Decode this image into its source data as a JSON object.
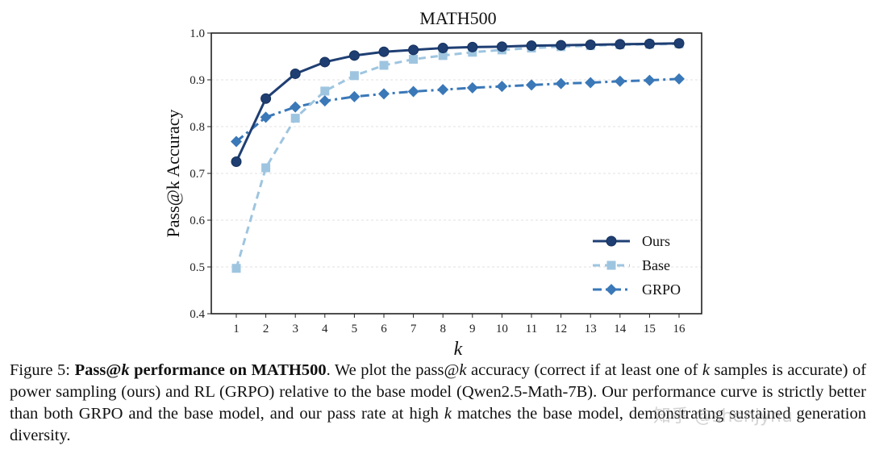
{
  "chart_data": {
    "type": "line",
    "title": "MATH500",
    "xlabel": "k",
    "ylabel": "Pass@k Accuracy",
    "x": [
      1,
      2,
      3,
      4,
      5,
      6,
      7,
      8,
      9,
      10,
      11,
      12,
      13,
      14,
      15,
      16
    ],
    "xticks": [
      "1",
      "2",
      "3",
      "4",
      "5",
      "6",
      "7",
      "8",
      "9",
      "10",
      "11",
      "12",
      "13",
      "14",
      "15",
      "16"
    ],
    "ylim": [
      0.4,
      1.0
    ],
    "yticks": [
      "0.4",
      "0.5",
      "0.6",
      "0.7",
      "0.8",
      "0.9",
      "1.0"
    ],
    "ytick_values": [
      0.4,
      0.5,
      0.6,
      0.7,
      0.8,
      0.9,
      1.0
    ],
    "grid": "horizontal dashed",
    "legend_position": "lower-right",
    "series": [
      {
        "name": "Ours",
        "color": "#1f3f73",
        "marker": "circle",
        "linestyle": "solid",
        "values": [
          0.725,
          0.86,
          0.913,
          0.938,
          0.952,
          0.96,
          0.964,
          0.968,
          0.97,
          0.971,
          0.973,
          0.974,
          0.975,
          0.976,
          0.977,
          0.978
        ]
      },
      {
        "name": "Base",
        "color": "#9ec5e0",
        "marker": "square",
        "linestyle": "dashed",
        "values": [
          0.497,
          0.712,
          0.818,
          0.876,
          0.909,
          0.931,
          0.944,
          0.952,
          0.959,
          0.964,
          0.968,
          0.971,
          0.973,
          0.975,
          0.976,
          0.977
        ]
      },
      {
        "name": "GRPO",
        "color": "#3a78b8",
        "marker": "diamond",
        "linestyle": "dashdot",
        "values": [
          0.768,
          0.82,
          0.842,
          0.855,
          0.864,
          0.87,
          0.875,
          0.879,
          0.883,
          0.886,
          0.889,
          0.892,
          0.894,
          0.897,
          0.899,
          0.902
        ]
      }
    ]
  },
  "caption": {
    "figure_label": "Figure 5:",
    "bold_title_pre": "Pass@",
    "bold_title_k": "k",
    "bold_title_post": " performance on MATH500",
    "text_1": ".  We plot the pass@",
    "k_1": "k",
    "text_2": " accuracy (correct if at least one of ",
    "k_2": "k",
    "text_3": " samples is accurate) of power sampling (ours) and RL (GRPO) relative to the base model (Qwen2.5-Math-7B). Our performance curve is strictly better than both GRPO and the base model, and our pass rate at high ",
    "k_3": "k",
    "text_4": " matches the base model, demonstrating sustained generation diversity."
  },
  "watermark": "知乎 @shenjynu"
}
